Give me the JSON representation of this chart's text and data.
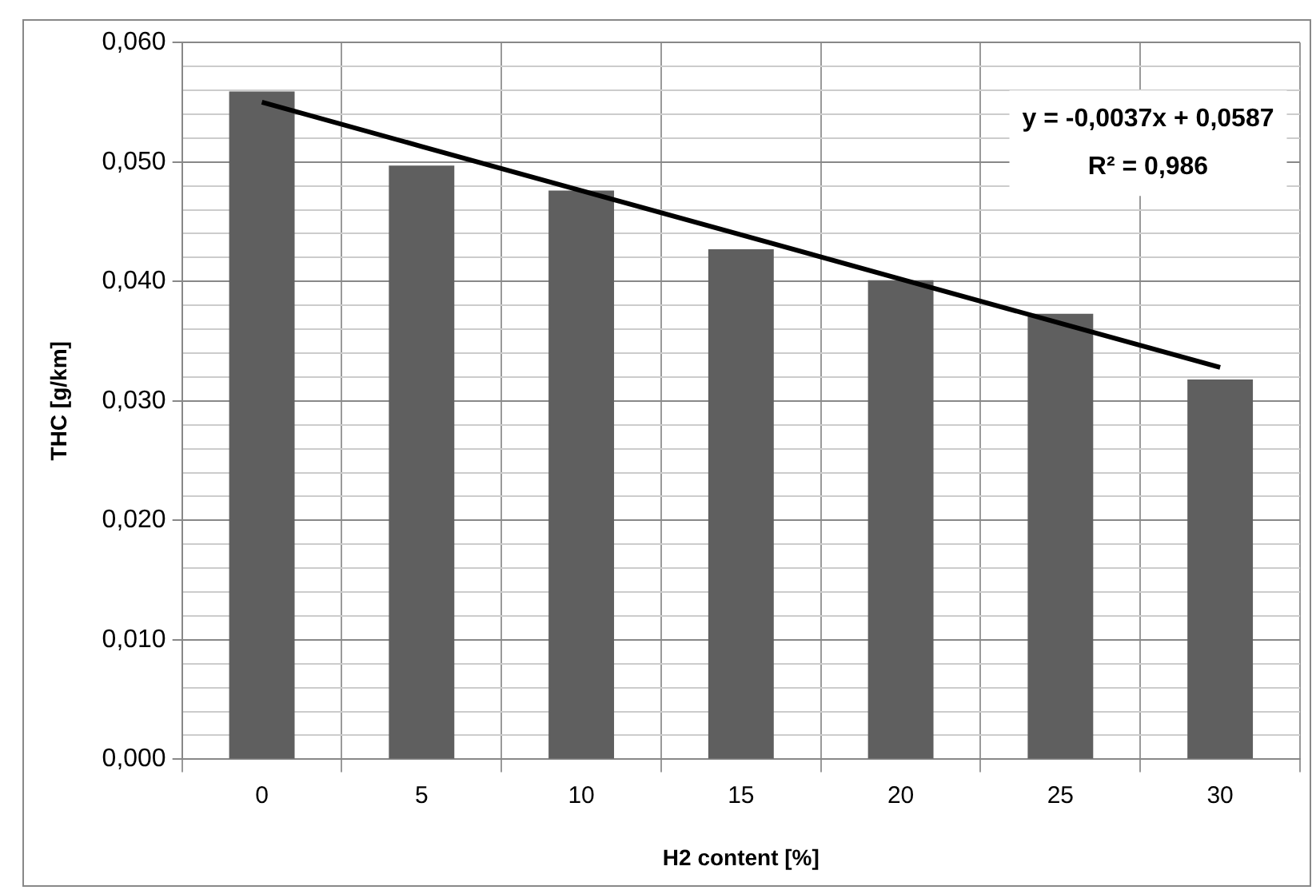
{
  "chart_data": {
    "type": "bar",
    "xlabel": "H2 content [%]",
    "ylabel": "THC [g/km]",
    "categories": [
      "0",
      "5",
      "10",
      "15",
      "20",
      "25",
      "30"
    ],
    "series": [
      {
        "color": "#5f5f5f",
        "values": [
          0.0559,
          0.0497,
          0.0476,
          0.0427,
          0.0401,
          0.0373,
          0.0318
        ]
      },
      {
        "type": "line",
        "color": "#000000",
        "values": [
          0.055,
          0.0513,
          0.0476,
          0.0439,
          0.0402,
          0.0365,
          0.0328
        ]
      }
    ],
    "ylim": [
      0,
      0.06
    ],
    "yticks": [
      {
        "value": 0,
        "label": "0,000"
      },
      {
        "value": 0.002,
        "label": null
      },
      {
        "value": 0.004,
        "label": null
      },
      {
        "value": 0.006,
        "label": null
      },
      {
        "value": 0.008,
        "label": null
      },
      {
        "value": 0.01,
        "label": "0,010"
      },
      {
        "value": 0.012,
        "label": null
      },
      {
        "value": 0.014,
        "label": null
      },
      {
        "value": 0.016,
        "label": null
      },
      {
        "value": 0.018,
        "label": null
      },
      {
        "value": 0.02,
        "label": "0,020"
      },
      {
        "value": 0.022,
        "label": null
      },
      {
        "value": 0.024,
        "label": null
      },
      {
        "value": 0.026,
        "label": null
      },
      {
        "value": 0.028,
        "label": null
      },
      {
        "value": 0.03,
        "label": "0,030"
      },
      {
        "value": 0.032,
        "label": null
      },
      {
        "value": 0.034,
        "label": null
      },
      {
        "value": 0.036,
        "label": null
      },
      {
        "value": 0.038,
        "label": null
      },
      {
        "value": 0.04,
        "label": "0,040"
      },
      {
        "value": 0.042,
        "label": null
      },
      {
        "value": 0.044,
        "label": null
      },
      {
        "value": 0.046,
        "label": null
      },
      {
        "value": 0.048,
        "label": null
      },
      {
        "value": 0.05,
        "label": "0,050"
      },
      {
        "value": 0.052,
        "label": null
      },
      {
        "value": 0.054,
        "label": null
      },
      {
        "value": 0.056,
        "label": null
      },
      {
        "value": 0.058,
        "label": null
      },
      {
        "value": 0.06,
        "label": "0,060"
      }
    ],
    "annotations": [
      "y = -0,0037x + 0,0587",
      "R² = 0,986"
    ],
    "grid": true,
    "legend": false,
    "marker": "none"
  }
}
